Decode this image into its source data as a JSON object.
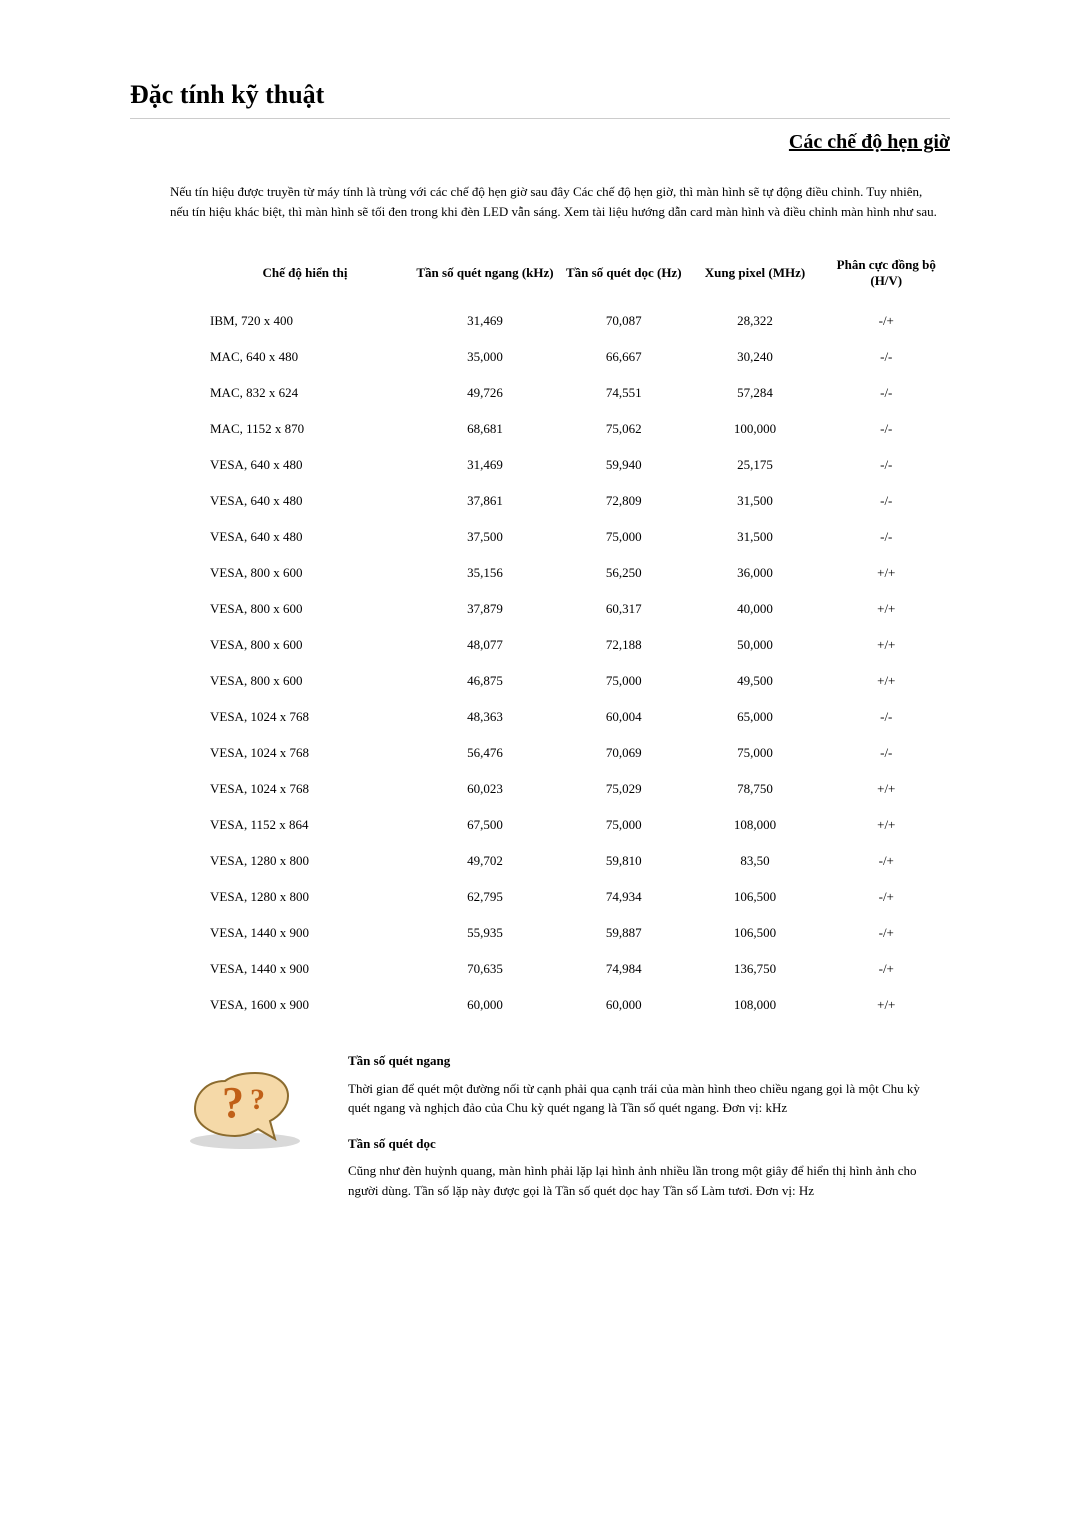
{
  "pageTitle": "Đặc tính kỹ thuật",
  "sectionTitle": "Các chế độ hẹn giờ",
  "intro": "Nếu tín hiệu được truyền từ máy tính là trùng với các chế độ hẹn giờ sau đây Các chế độ hẹn giờ, thì màn hình sẽ tự động điều chỉnh. Tuy nhiên, nếu tín hiệu khác biệt, thì màn hình sẽ tối đen trong khi đèn LED vẫn sáng. Xem tài liệu hướng dẫn card màn hình và điều chỉnh màn hình như sau.",
  "columns": {
    "c0": "Chế độ hiển thị",
    "c1": "Tần số quét ngang (kHz)",
    "c2": "Tần số quét dọc (Hz)",
    "c3": "Xung pixel (MHz)",
    "c4": "Phân cực đồng bộ (H/V)"
  },
  "rows": [
    {
      "mode": "IBM, 720 x 400",
      "h": "31,469",
      "v": "70,087",
      "p": "28,322",
      "s": "-/+"
    },
    {
      "mode": "MAC, 640 x 480",
      "h": "35,000",
      "v": "66,667",
      "p": "30,240",
      "s": "-/-"
    },
    {
      "mode": "MAC, 832 x 624",
      "h": "49,726",
      "v": "74,551",
      "p": "57,284",
      "s": "-/-"
    },
    {
      "mode": "MAC, 1152 x 870",
      "h": "68,681",
      "v": "75,062",
      "p": "100,000",
      "s": "-/-"
    },
    {
      "mode": "VESA, 640 x 480",
      "h": "31,469",
      "v": "59,940",
      "p": "25,175",
      "s": "-/-"
    },
    {
      "mode": "VESA, 640 x 480",
      "h": "37,861",
      "v": "72,809",
      "p": "31,500",
      "s": "-/-"
    },
    {
      "mode": "VESA, 640 x 480",
      "h": "37,500",
      "v": "75,000",
      "p": "31,500",
      "s": "-/-"
    },
    {
      "mode": "VESA, 800 x 600",
      "h": "35,156",
      "v": "56,250",
      "p": "36,000",
      "s": "+/+"
    },
    {
      "mode": "VESA, 800 x 600",
      "h": "37,879",
      "v": "60,317",
      "p": "40,000",
      "s": "+/+"
    },
    {
      "mode": "VESA, 800 x 600",
      "h": "48,077",
      "v": "72,188",
      "p": "50,000",
      "s": "+/+"
    },
    {
      "mode": "VESA, 800 x 600",
      "h": "46,875",
      "v": "75,000",
      "p": "49,500",
      "s": "+/+"
    },
    {
      "mode": "VESA, 1024 x 768",
      "h": "48,363",
      "v": "60,004",
      "p": "65,000",
      "s": "-/-"
    },
    {
      "mode": "VESA, 1024 x 768",
      "h": "56,476",
      "v": "70,069",
      "p": "75,000",
      "s": "-/-"
    },
    {
      "mode": "VESA, 1024 x 768",
      "h": "60,023",
      "v": "75,029",
      "p": "78,750",
      "s": "+/+"
    },
    {
      "mode": "VESA, 1152 x 864",
      "h": "67,500",
      "v": "75,000",
      "p": "108,000",
      "s": "+/+"
    },
    {
      "mode": "VESA, 1280 x 800",
      "h": "49,702",
      "v": "59,810",
      "p": "83,50",
      "s": "-/+"
    },
    {
      "mode": "VESA, 1280 x 800",
      "h": "62,795",
      "v": "74,934",
      "p": "106,500",
      "s": "-/+"
    },
    {
      "mode": "VESA, 1440 x 900",
      "h": "55,935",
      "v": "59,887",
      "p": "106,500",
      "s": "-/+"
    },
    {
      "mode": "VESA, 1440 x 900",
      "h": "70,635",
      "v": "74,984",
      "p": "136,750",
      "s": "-/+"
    },
    {
      "mode": "VESA, 1600 x 900",
      "h": "60,000",
      "v": "60,000",
      "p": "108,000",
      "s": "+/+"
    }
  ],
  "colwidths": [
    "28%",
    "20%",
    "17%",
    "18%",
    "17%"
  ],
  "horizFreq": {
    "title": "Tần số quét ngang",
    "body": "Thời gian để quét một đường nối từ cạnh phải qua cạnh trái của màn hình theo chiều ngang gọi là một Chu kỳ quét ngang và nghịch đảo của Chu kỳ quét ngang là Tần số quét ngang. Đơn vị: kHz"
  },
  "vertFreq": {
    "title": "Tần số quét dọc",
    "body": "Cũng như đèn huỳnh quang, màn hình phải lặp lại hình ảnh nhiều lần trong một giây để hiển thị hình ảnh cho người dùng. Tần số lặp này được gọi là Tần số quét dọc hay Tần số Làm tươi. Đơn vị: Hz"
  },
  "iconColors": {
    "bodyFill": "#f5d9a8",
    "bodyStroke": "#8b6b2e",
    "question": "#c06018"
  }
}
